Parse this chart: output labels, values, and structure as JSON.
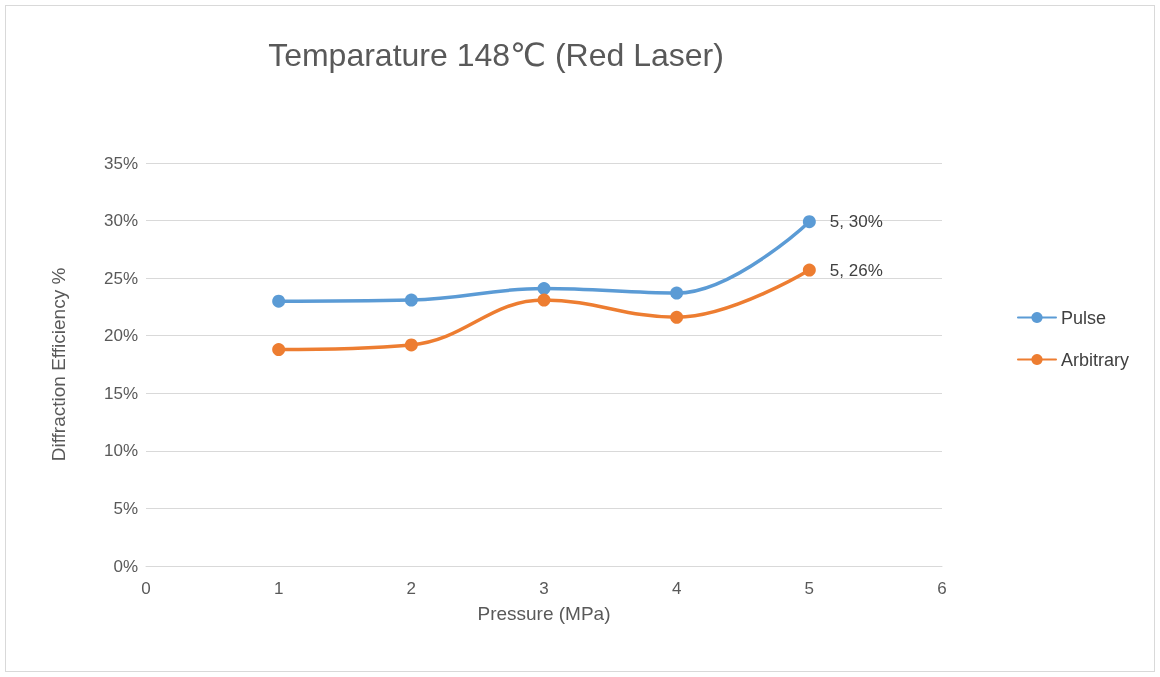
{
  "chart_data": {
    "type": "line",
    "title": "Temparature 148℃ (Red Laser)",
    "xlabel": "Pressure (MPa)",
    "ylabel": "Diffraction Efficiency %",
    "x": [
      1,
      2,
      3,
      4,
      5
    ],
    "series": [
      {
        "name": "Pulse",
        "color": "#5b9bd5",
        "values": [
          23,
          23.1,
          24.1,
          23.7,
          29.9
        ],
        "value_labels": [
          null,
          null,
          null,
          null,
          "5, 30%"
        ]
      },
      {
        "name": "Arbitrary",
        "color": "#ed7d31",
        "values": [
          18.8,
          19.2,
          23.1,
          21.6,
          25.7
        ],
        "value_labels": [
          null,
          null,
          null,
          null,
          "5, 26%"
        ]
      }
    ],
    "xlim": [
      0,
      6
    ],
    "xticks": [
      0,
      1,
      2,
      3,
      4,
      5,
      6
    ],
    "ylim": [
      0,
      35
    ],
    "yticks": [
      {
        "value": 0,
        "label": "0%"
      },
      {
        "value": 5,
        "label": "5%"
      },
      {
        "value": 10,
        "label": "10%"
      },
      {
        "value": 15,
        "label": "15%"
      },
      {
        "value": 20,
        "label": "20%"
      },
      {
        "value": 25,
        "label": "25%"
      },
      {
        "value": 30,
        "label": "30%"
      },
      {
        "value": 35,
        "label": "35%"
      }
    ],
    "grid": "y",
    "legend": "right",
    "marker": "circle",
    "line_style": "solid"
  }
}
